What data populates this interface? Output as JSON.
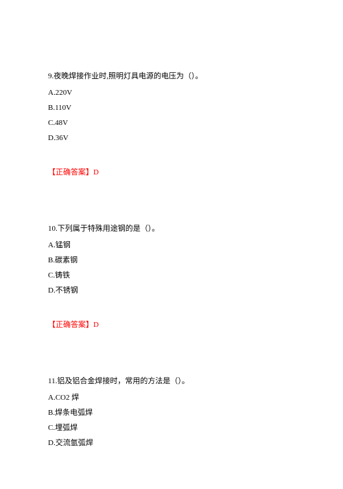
{
  "questions": [
    {
      "number": "9.",
      "text": "夜晚焊接作业时,照明灯具电源的电压为（）。",
      "options": [
        "A.220V",
        "B.110V",
        "C.48V",
        "D.36V"
      ],
      "answer_label": "【正确答案】D"
    },
    {
      "number": "10.",
      "text": "下列属于特殊用途钢的是（）。",
      "options": [
        "A.锰钢",
        "B.碳素钢",
        "C.铸铁",
        "D.不锈钢"
      ],
      "answer_label": "【正确答案】D"
    },
    {
      "number": "11.",
      "text": "铝及铝合金焊接时，常用的方法是（）。",
      "options": [
        "A.CO2 焊",
        "B.焊条电弧焊",
        "C.埋弧焊",
        "D.交流氩弧焊"
      ],
      "answer_label": ""
    }
  ],
  "colors": {
    "text": "#000000",
    "answer": "#ff0000",
    "background": "#ffffff"
  },
  "typography": {
    "font_family": "SimSun",
    "font_size": 11,
    "line_height": 2.0
  }
}
